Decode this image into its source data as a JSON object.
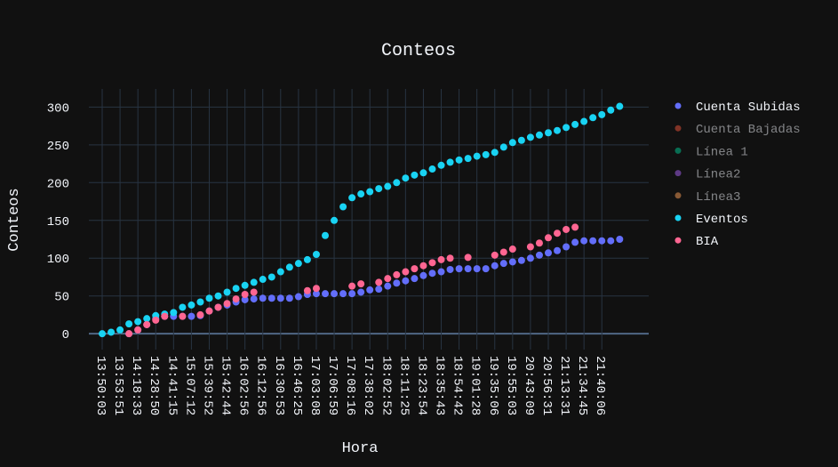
{
  "chart_data": {
    "type": "scatter",
    "title": "Conteos",
    "x_label": "Hora",
    "y_label": "Conteos",
    "categories": [
      "13:50:03",
      null,
      "13:53:51",
      null,
      "14:18:33",
      null,
      "14:28:50",
      null,
      "14:41:15",
      null,
      "15:07:12",
      null,
      "15:39:52",
      null,
      "15:42:44",
      null,
      "16:02:56",
      null,
      "16:12:56",
      null,
      "16:30:53",
      null,
      "16:46:25",
      null,
      "17:03:08",
      null,
      "17:06:59",
      null,
      "17:08:16",
      null,
      "17:38:02",
      null,
      "18:02:52",
      null,
      "18:11:25",
      null,
      "18:23:54",
      null,
      "18:35:43",
      null,
      "18:54:42",
      null,
      "19:01:28",
      null,
      "19:35:06",
      null,
      "19:55:03",
      null,
      "20:43:09",
      null,
      "20:56:31",
      null,
      "21:13:31",
      null,
      "21:34:45",
      null,
      "21:40:06",
      null,
      null
    ],
    "series": [
      {
        "name": "Cuenta Subidas",
        "color": "#636efa",
        "visible": true,
        "values": [
          null,
          null,
          null,
          0,
          5,
          12,
          20,
          23,
          23,
          23,
          23,
          24,
          30,
          35,
          38,
          42,
          45,
          46,
          47,
          47,
          47,
          47,
          49,
          52,
          53,
          53,
          53,
          53,
          53,
          55,
          58,
          59,
          63,
          67,
          70,
          73,
          77,
          80,
          82,
          85,
          86,
          86,
          86,
          86,
          90,
          93,
          95,
          97,
          100,
          104,
          107,
          110,
          115,
          121,
          123,
          123,
          123,
          123,
          125
        ]
      },
      {
        "name": "Cuenta Bajadas",
        "color": "#EF553B",
        "visible": false
      },
      {
        "name": "Línea 1",
        "color": "#00cc96",
        "visible": false
      },
      {
        "name": "Línea2",
        "color": "#ab63fa",
        "visible": false
      },
      {
        "name": "Línea3",
        "color": "#FFA15A",
        "visible": false
      },
      {
        "name": "Eventos",
        "color": "#19d3f3",
        "visible": true,
        "values": [
          0,
          2,
          5,
          13,
          16,
          20,
          24,
          26,
          28,
          35,
          38,
          42,
          47,
          50,
          55,
          60,
          64,
          68,
          72,
          75,
          82,
          88,
          93,
          98,
          105,
          130,
          150,
          168,
          180,
          185,
          188,
          192,
          195,
          200,
          206,
          210,
          213,
          218,
          223,
          227,
          230,
          232,
          235,
          237,
          240,
          247,
          253,
          256,
          260,
          263,
          266,
          269,
          273,
          277,
          281,
          286,
          290,
          296,
          301
        ]
      },
      {
        "name": "BIA",
        "color": "#FF6692",
        "visible": true,
        "values": [
          null,
          null,
          null,
          0,
          5,
          12,
          18,
          23,
          null,
          23,
          null,
          25,
          30,
          35,
          40,
          46,
          52,
          55,
          null,
          null,
          null,
          null,
          null,
          57,
          60,
          null,
          null,
          null,
          63,
          66,
          null,
          68,
          73,
          78,
          82,
          86,
          90,
          94,
          98,
          100,
          null,
          101,
          null,
          null,
          104,
          108,
          112,
          null,
          115,
          120,
          127,
          133,
          138,
          141,
          null,
          null,
          null,
          null,
          null
        ]
      }
    ],
    "ylim": [
      -21,
      324
    ],
    "yticks": [
      0,
      50,
      100,
      150,
      200,
      250,
      300
    ],
    "grid": true
  }
}
